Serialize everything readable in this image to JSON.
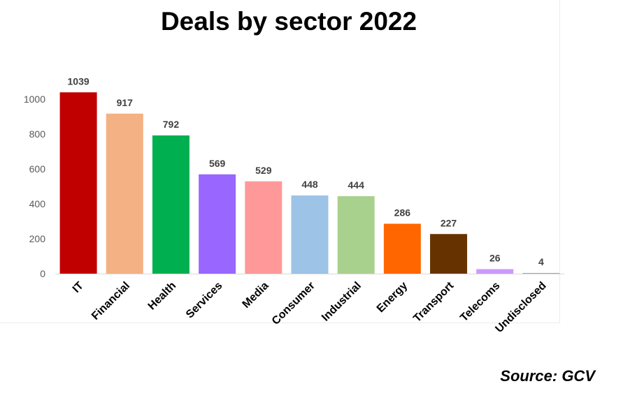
{
  "chart_data": {
    "type": "bar",
    "title": "Deals by sector 2022",
    "xlabel": "",
    "ylabel": "",
    "ylim": [
      0,
      1100
    ],
    "yticks": [
      0,
      200,
      400,
      600,
      800,
      1000
    ],
    "grid": false,
    "legend": "none",
    "categories": [
      "IT",
      "Financial",
      "Health",
      "Services",
      "Media",
      "Consumer",
      "Industrial",
      "Energy",
      "Transport",
      "Telecoms",
      "Undisclosed"
    ],
    "values": [
      1039,
      917,
      792,
      569,
      529,
      448,
      444,
      286,
      227,
      26,
      4
    ],
    "colors": [
      "#c00000",
      "#f4b183",
      "#00b050",
      "#9966ff",
      "#ff9999",
      "#9dc3e6",
      "#a9d18e",
      "#ff6600",
      "#663300",
      "#cc99ff",
      "#a6a6a6"
    ]
  },
  "source": "Source: GCV"
}
